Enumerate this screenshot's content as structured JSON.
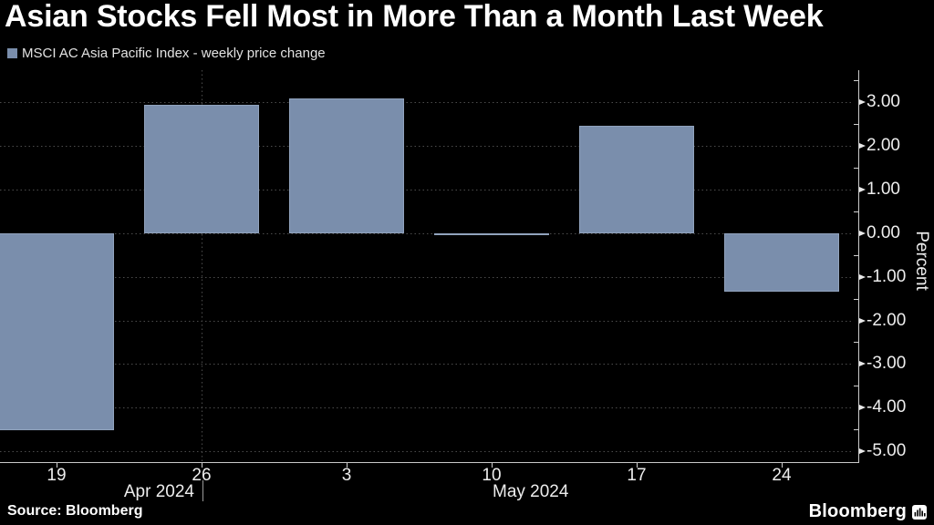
{
  "title": "Asian Stocks Fell Most in More Than a Month Last Week",
  "legend": {
    "label": "MSCI AC Asia Pacific Index - weekly price change"
  },
  "source": "Source: Bloomberg",
  "logo": {
    "text": "Bloomberg"
  },
  "colors": {
    "background": "#000000",
    "bar": "#7a8eac"
  },
  "chart_data": {
    "type": "bar",
    "title": "Asian Stocks Fell Most in More Than a Month Last Week",
    "legend": "MSCI AC Asia Pacific Index - weekly price change",
    "categories": [
      "19",
      "26",
      "3",
      "10",
      "17",
      "24"
    ],
    "values": [
      -4.51,
      2.94,
      3.08,
      -0.04,
      2.45,
      -1.34
    ],
    "xlabel": "",
    "ylabel": "Percent",
    "ylim": [
      -5.27,
      3.74
    ],
    "y_ticks": [
      {
        "value": 3,
        "label": "3.00"
      },
      {
        "value": 2,
        "label": "2.00"
      },
      {
        "value": 1,
        "label": "1.00"
      },
      {
        "value": 0,
        "label": "0.00"
      },
      {
        "value": -1,
        "label": "-1.00"
      },
      {
        "value": -2,
        "label": "-2.00"
      },
      {
        "value": -3,
        "label": "-3.00"
      },
      {
        "value": -4,
        "label": "-4.00"
      },
      {
        "value": -5,
        "label": "-5.00"
      }
    ],
    "month_labels": [
      {
        "text": "Apr 2024",
        "tick_index": 1,
        "align": "before"
      },
      {
        "text": "May 2024",
        "tick_index": 3,
        "align": "after"
      }
    ],
    "month_divider_tick_index": 1,
    "bar_color": "#7a8eac",
    "grid": "dotted horizontal lines at every 1.00; dotted vertical line at month boundary",
    "legend_position": "top-left"
  }
}
